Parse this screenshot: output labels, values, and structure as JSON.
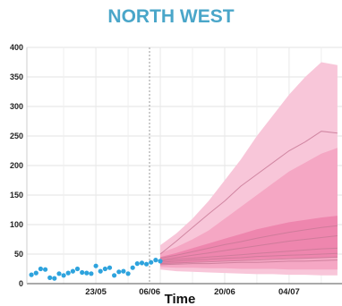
{
  "chart_data": {
    "type": "line",
    "title": "NORTH WEST",
    "xlabel": "Time",
    "ylabel": "",
    "ylim": [
      0,
      400
    ],
    "yticks": [
      "0",
      "50",
      "100",
      "150",
      "200",
      "250",
      "300",
      "350",
      "400"
    ],
    "xtick_labels": [
      "23/05",
      "06/06",
      "20/06",
      "04/07"
    ],
    "grid": true,
    "colors": {
      "observed": "#2ea3dd",
      "band_outer": "#f8c6d9",
      "band_mid": "#f5a7c4",
      "band_inner": "#ee86ae",
      "line": "#c97a98",
      "divider": "#9a9a9a",
      "title": "#4aa6c9"
    },
    "observed": {
      "name": "",
      "x_days": [
        0,
        2,
        4,
        6,
        8,
        10,
        12,
        14,
        16,
        18,
        20,
        22,
        24,
        26,
        28,
        30,
        32,
        34,
        36,
        38,
        40,
        42,
        44,
        46,
        48,
        50,
        52,
        54,
        56
      ],
      "y": [
        15,
        18,
        25,
        24,
        10,
        9,
        17,
        14,
        18,
        21,
        25,
        19,
        18,
        17,
        30,
        21,
        25,
        27,
        14,
        20,
        21,
        17,
        27,
        34,
        35,
        33,
        36,
        40,
        38
      ]
    },
    "projection": {
      "x_days": [
        56,
        63,
        70,
        77,
        84,
        91,
        98,
        105,
        112,
        119,
        126,
        133
      ],
      "upper_outer": [
        65,
        85,
        110,
        140,
        175,
        210,
        250,
        285,
        320,
        350,
        375,
        370
      ],
      "upper_mid": [
        52,
        62,
        75,
        90,
        110,
        130,
        150,
        170,
        190,
        205,
        220,
        230
      ],
      "upper_inner": [
        45,
        52,
        60,
        68,
        76,
        84,
        92,
        98,
        104,
        108,
        112,
        115
      ],
      "lower_inner": [
        33,
        34,
        36,
        38,
        39,
        40,
        41,
        42,
        43,
        43,
        44,
        44
      ],
      "lower_mid": [
        28,
        27,
        27,
        26,
        26,
        25,
        25,
        25,
        24,
        24,
        24,
        24
      ],
      "lower_outer": [
        24,
        21,
        20,
        19,
        18,
        17,
        16,
        16,
        15,
        15,
        14,
        14
      ],
      "lines": [
        [
          50,
          72,
          95,
          118,
          140,
          165,
          185,
          205,
          225,
          240,
          258,
          255
        ],
        [
          43,
          48,
          54,
          60,
          66,
          71,
          77,
          82,
          87,
          91,
          95,
          98
        ],
        [
          40,
          44,
          48,
          52,
          56,
          60,
          64,
          68,
          72,
          75,
          78,
          81
        ],
        [
          38,
          41,
          43,
          45,
          47,
          49,
          51,
          53,
          55,
          57,
          59,
          60
        ],
        [
          36,
          38,
          40,
          41,
          43,
          44,
          46,
          47,
          48,
          49,
          50,
          51
        ],
        [
          34,
          35,
          36,
          37,
          38,
          39,
          40,
          41,
          42,
          43,
          44,
          45
        ],
        [
          32,
          33,
          34,
          34,
          35,
          36,
          36,
          37,
          38,
          38,
          39,
          40
        ]
      ]
    }
  }
}
